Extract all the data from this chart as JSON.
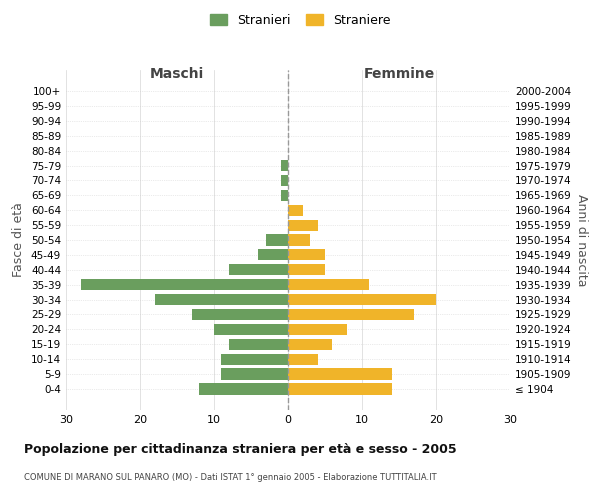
{
  "age_groups": [
    "100+",
    "95-99",
    "90-94",
    "85-89",
    "80-84",
    "75-79",
    "70-74",
    "65-69",
    "60-64",
    "55-59",
    "50-54",
    "45-49",
    "40-44",
    "35-39",
    "30-34",
    "25-29",
    "20-24",
    "15-19",
    "10-14",
    "5-9",
    "0-4"
  ],
  "birth_years": [
    "≤ 1904",
    "1905-1909",
    "1910-1914",
    "1915-1919",
    "1920-1924",
    "1925-1929",
    "1930-1934",
    "1935-1939",
    "1940-1944",
    "1945-1949",
    "1950-1954",
    "1955-1959",
    "1960-1964",
    "1965-1969",
    "1970-1974",
    "1975-1979",
    "1980-1984",
    "1985-1989",
    "1990-1994",
    "1995-1999",
    "2000-2004"
  ],
  "maschi": [
    0,
    0,
    0,
    0,
    0,
    1,
    1,
    1,
    0,
    0,
    3,
    4,
    8,
    28,
    18,
    13,
    10,
    8,
    9,
    9,
    12
  ],
  "femmine": [
    0,
    0,
    0,
    0,
    0,
    0,
    0,
    0,
    2,
    4,
    3,
    5,
    5,
    11,
    20,
    17,
    8,
    6,
    4,
    14,
    14
  ],
  "color_maschi": "#6a9e5e",
  "color_femmine": "#f0b429",
  "title": "Popolazione per cittadinanza straniera per età e sesso - 2005",
  "subtitle": "COMUNE DI MARANO SUL PANARO (MO) - Dati ISTAT 1° gennaio 2005 - Elaborazione TUTTITALIA.IT",
  "xlabel_left": "Maschi",
  "xlabel_right": "Femmine",
  "ylabel_left": "Fasce di età",
  "ylabel_right": "Anni di nascita",
  "legend_maschi": "Stranieri",
  "legend_femmine": "Straniere",
  "xlim": 30,
  "background_color": "#ffffff",
  "grid_color": "#cccccc"
}
